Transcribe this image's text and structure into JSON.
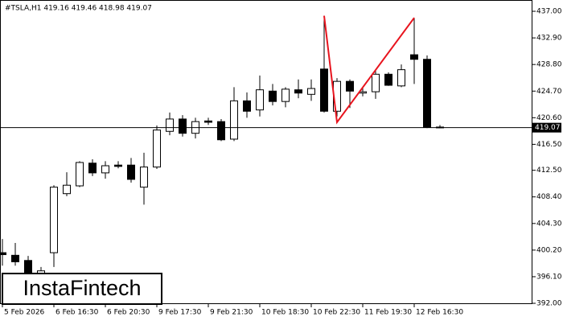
{
  "chart_data": {
    "type": "candlestick",
    "title": "#TSLA,H1  419.16 419.46 418.98 419.07",
    "watermark": "InstaFintech",
    "categories": [
      "5 Feb 2026",
      null,
      null,
      null,
      "6 Feb 16:30",
      null,
      null,
      null,
      "6 Feb 20:30",
      null,
      null,
      null,
      "9 Feb 17:30",
      null,
      null,
      null,
      "9 Feb 21:30",
      null,
      null,
      null,
      "10 Feb 18:30",
      null,
      null,
      null,
      "10 Feb 22:30",
      null,
      null,
      null,
      "11 Feb 19:30",
      null,
      null,
      null,
      "12 Feb 16:30",
      null,
      null
    ],
    "open": [
      399.8,
      399.4,
      398.6,
      396.6,
      399.8,
      408.9,
      410.1,
      413.6,
      412.1,
      413.3,
      413.3,
      409.9,
      413.0,
      418.5,
      420.4,
      418.2,
      420.1,
      420.0,
      417.3,
      423.2,
      421.8,
      424.7,
      423.1,
      424.9,
      424.2,
      428.1,
      421.6,
      426.2,
      424.4,
      424.6,
      427.3,
      425.5,
      430.3,
      429.6,
      419.16
    ],
    "high": [
      401.9,
      401.3,
      399.3,
      397.6,
      410.2,
      412.2,
      413.9,
      414.2,
      413.9,
      413.9,
      414.4,
      415.2,
      419.4,
      421.4,
      421.0,
      420.6,
      420.6,
      420.4,
      425.3,
      424.5,
      427.1,
      425.8,
      425.3,
      426.5,
      426.5,
      436.3,
      426.7,
      426.5,
      425.3,
      427.8,
      427.6,
      428.8,
      436.0,
      430.2,
      419.46
    ],
    "low": [
      397.8,
      397.8,
      396.3,
      396.0,
      397.6,
      408.5,
      409.9,
      411.6,
      411.2,
      412.8,
      410.6,
      407.2,
      412.7,
      417.9,
      417.7,
      417.4,
      419.5,
      417.0,
      417.0,
      420.6,
      420.8,
      422.5,
      422.2,
      423.6,
      423.2,
      421.4,
      420.8,
      422.1,
      423.9,
      423.5,
      425.5,
      425.3,
      425.8,
      419.0,
      418.98
    ],
    "close": [
      399.5,
      398.4,
      396.6,
      397.0,
      409.9,
      410.2,
      413.7,
      412.1,
      413.2,
      413.1,
      411.1,
      413.0,
      418.7,
      420.4,
      418.2,
      420.0,
      419.9,
      417.2,
      423.2,
      421.6,
      424.9,
      423.1,
      425.0,
      424.4,
      425.1,
      421.6,
      426.2,
      424.7,
      424.6,
      427.3,
      425.6,
      428.0,
      429.6,
      419.1,
      419.07
    ],
    "up_color": "#ffffff",
    "down_color": "#000000",
    "current_price": 419.07,
    "pattern_line": {
      "color": "#e8141e",
      "x": [
        25,
        26,
        32
      ],
      "values": [
        436.3,
        419.9,
        436.0
      ]
    },
    "ylim": [
      391.88,
      438.74
    ],
    "yticks": [
      {
        "value": 437,
        "label": "437.00"
      },
      {
        "value": 432.9,
        "label": "432.90"
      },
      {
        "value": 428.8,
        "label": "428.80"
      },
      {
        "value": 424.7,
        "label": "424.70"
      },
      {
        "value": 420.6,
        "label": "420.60"
      },
      {
        "value": 416.5,
        "label": "416.50"
      },
      {
        "value": 412.5,
        "label": "412.50"
      },
      {
        "value": 408.4,
        "label": "408.40"
      },
      {
        "value": 404.3,
        "label": "404.30"
      },
      {
        "value": 400.2,
        "label": "400.20"
      },
      {
        "value": 396.1,
        "label": "396.10"
      },
      {
        "value": 392,
        "label": "392.00"
      }
    ]
  }
}
